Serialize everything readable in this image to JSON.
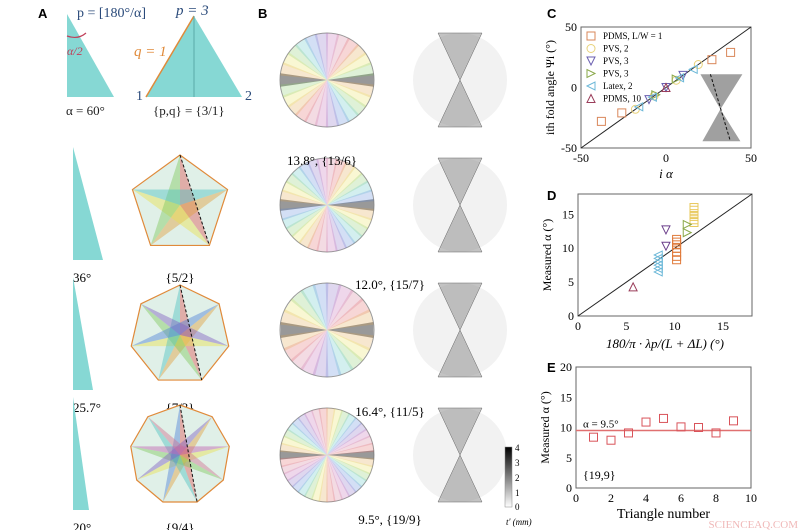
{
  "panel_labels": [
    "A",
    "B",
    "C",
    "D",
    "E"
  ],
  "panel_a": {
    "formula_p": "p = [180°/α]",
    "p3": "p = 3",
    "q1": "q = 1",
    "half_angle": "α/2",
    "alpha": "α = 60°",
    "pq": "{p,q} = {3/1}",
    "vertex_1": "1",
    "vertex_2": "2",
    "rows": [
      {
        "angle": "36°",
        "symbol": "{5/2}",
        "p": 5,
        "q": 2
      },
      {
        "angle": "25.7°",
        "symbol": "{7/3}",
        "p": 7,
        "q": 3
      },
      {
        "angle": "20°",
        "symbol": "{9/4}",
        "p": 9,
        "q": 4
      }
    ]
  },
  "panel_b": {
    "captions": [
      "13.8°, {13/6}",
      "12.0°, {15/7}",
      "16.4°, {11/5}",
      "9.5°, {19/9}"
    ],
    "counts": [
      13,
      15,
      11,
      19
    ],
    "colorbar": {
      "ticks": [
        "0",
        "1",
        "2",
        "3",
        "4"
      ],
      "label": "t' (mm)"
    }
  },
  "chart_data": [
    {
      "panel": "C",
      "type": "scatter",
      "xlabel": "i α",
      "ylabel": "ith fold angle Ψi (°)",
      "xlim": [
        -50,
        50
      ],
      "ylim": [
        -50,
        50
      ],
      "xticks": [
        "-50",
        "0",
        "50"
      ],
      "yticks": [
        "-50",
        "0",
        "50"
      ],
      "legend_position": "top-left",
      "reference_line": "y = x",
      "series": [
        {
          "name": "PDMS, L/W = 1",
          "marker": "square",
          "color": "#d9875a",
          "x": [
            -38,
            -26,
            27,
            38
          ],
          "y": [
            -28,
            -21,
            23,
            29
          ]
        },
        {
          "name": "PVS, 2",
          "marker": "circle",
          "color": "#e8d27a",
          "x": [
            -18,
            -7,
            6,
            19
          ],
          "y": [
            -18,
            -7,
            6,
            19
          ]
        },
        {
          "name": "PVS, 3",
          "marker": "triangle-down",
          "color": "#6a5fb0",
          "x": [
            -10,
            0,
            10
          ],
          "y": [
            -10,
            0,
            10
          ]
        },
        {
          "name": "PVS, 3",
          "marker": "triangle-right",
          "color": "#8aa84a",
          "x": [
            -6,
            6
          ],
          "y": [
            -6,
            7
          ]
        },
        {
          "name": "Latex, 2",
          "marker": "triangle-left",
          "color": "#6cb8d8",
          "x": [
            -16,
            -8,
            8,
            16
          ],
          "y": [
            -16,
            -8,
            8,
            15
          ]
        },
        {
          "name": "PDMS, 10",
          "marker": "triangle-up",
          "color": "#9a3d5a",
          "x": [
            0
          ],
          "y": [
            0
          ]
        }
      ]
    },
    {
      "panel": "D",
      "type": "scatter",
      "xlabel": "180/π · λp/(L + ΔL) (°)",
      "ylabel": "Measured α (°)",
      "xlim": [
        0,
        18
      ],
      "ylim": [
        0,
        18
      ],
      "xticks": [
        "0",
        "5",
        "10",
        "15"
      ],
      "yticks": [
        "0",
        "5",
        "10",
        "15"
      ],
      "reference_line": "y = x",
      "series": [
        {
          "marker": "triangle-up",
          "color": "#9a3d5a",
          "x": [
            5.7
          ],
          "y": [
            4.3
          ]
        },
        {
          "marker": "triangle-down",
          "color": "#6a3d8a",
          "x": [
            9.1,
            9.1
          ],
          "y": [
            12.7,
            10.3
          ]
        },
        {
          "marker": "triangle-left",
          "color": "#6cb8d8",
          "x": [
            8.3,
            8.3,
            8.3,
            8.3,
            8.3,
            8.3
          ],
          "y": [
            6.5,
            7.0,
            7.5,
            8.0,
            8.5,
            9.0
          ]
        },
        {
          "marker": "square",
          "color": "#e07a3a",
          "x": [
            10.2,
            10.2,
            10.2,
            10.2,
            10.2,
            10.2,
            10.2
          ],
          "y": [
            8.3,
            8.8,
            9.4,
            10.0,
            10.5,
            10.9,
            11.3
          ]
        },
        {
          "marker": "square",
          "color": "#e8c85a",
          "x": [
            12,
            12,
            12,
            12,
            12,
            12
          ],
          "y": [
            13.8,
            14.2,
            14.7,
            15.1,
            15.6,
            16.0
          ]
        },
        {
          "marker": "triangle-right",
          "color": "#8aa84a",
          "x": [
            11.3,
            11.3
          ],
          "y": [
            12.3,
            13.5
          ]
        }
      ]
    },
    {
      "panel": "E",
      "type": "scatter",
      "xlabel": "Triangle number",
      "ylabel": "Measured α (°)",
      "xlim": [
        0,
        10
      ],
      "ylim": [
        0,
        20
      ],
      "xticks": [
        "0",
        "2",
        "4",
        "6",
        "8",
        "10"
      ],
      "yticks": [
        "0",
        "5",
        "10",
        "15",
        "20"
      ],
      "annotation": "α = 9.5°",
      "inset_label": "{19,9}",
      "mean_line": 9.5,
      "series": [
        {
          "marker": "square",
          "color": "#d9535a",
          "x": [
            1,
            2,
            3,
            4,
            5,
            6,
            7,
            8,
            9
          ],
          "y": [
            8.4,
            7.9,
            9.1,
            10.9,
            11.5,
            10.1,
            10.0,
            9.1,
            11.1
          ]
        }
      ]
    }
  ],
  "watermark": "SCIENCEAQ.COM",
  "colors": {
    "teal": "#86d8d4",
    "red": "#d9535a",
    "orange": "#e08a3a",
    "blue": "#2a4a7a"
  }
}
